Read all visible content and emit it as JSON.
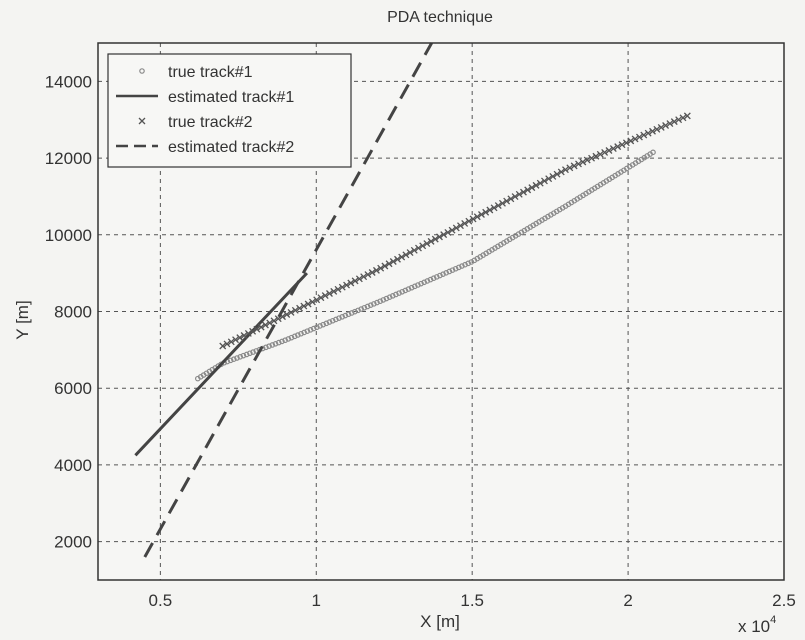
{
  "chart_data": {
    "type": "line",
    "title": "PDA technique",
    "xlabel": "X [m]",
    "ylabel": "Y [m]",
    "x_multiplier": "x 10",
    "x_multiplier_exp": "4",
    "xlim": [
      0.3,
      2.5
    ],
    "ylim": [
      1000,
      15000
    ],
    "x_ticks": [
      0.5,
      1,
      1.5,
      2,
      2.5
    ],
    "x_tick_labels": [
      "0.5",
      "1",
      "1.5",
      "2",
      "2.5"
    ],
    "y_ticks": [
      2000,
      4000,
      6000,
      8000,
      10000,
      12000,
      14000
    ],
    "y_tick_labels": [
      "2000",
      "4000",
      "6000",
      "8000",
      "10000",
      "12000",
      "14000"
    ],
    "grid": true,
    "legend_position": "top-left",
    "series": [
      {
        "name": "true track#1",
        "style": "markers-dot",
        "color": "#8a8a8a",
        "points": [
          [
            0.62,
            6250
          ],
          [
            0.7,
            6650
          ],
          [
            0.9,
            7250
          ],
          [
            1.2,
            8250
          ],
          [
            1.5,
            9300
          ],
          [
            1.8,
            10750
          ],
          [
            2.08,
            12150
          ]
        ]
      },
      {
        "name": "estimated track#1",
        "style": "solid",
        "color": "#444444",
        "points": [
          [
            0.42,
            4250
          ],
          [
            0.97,
            9000
          ]
        ]
      },
      {
        "name": "true track#2",
        "style": "markers-x",
        "color": "#555555",
        "points": [
          [
            0.7,
            7100
          ],
          [
            0.9,
            7900
          ],
          [
            1.2,
            9100
          ],
          [
            1.5,
            10400
          ],
          [
            1.8,
            11700
          ],
          [
            2.19,
            13100
          ]
        ]
      },
      {
        "name": "estimated track#2",
        "style": "dashed",
        "color": "#444444",
        "points": [
          [
            0.45,
            1600
          ],
          [
            1.37,
            15000
          ]
        ]
      }
    ]
  }
}
